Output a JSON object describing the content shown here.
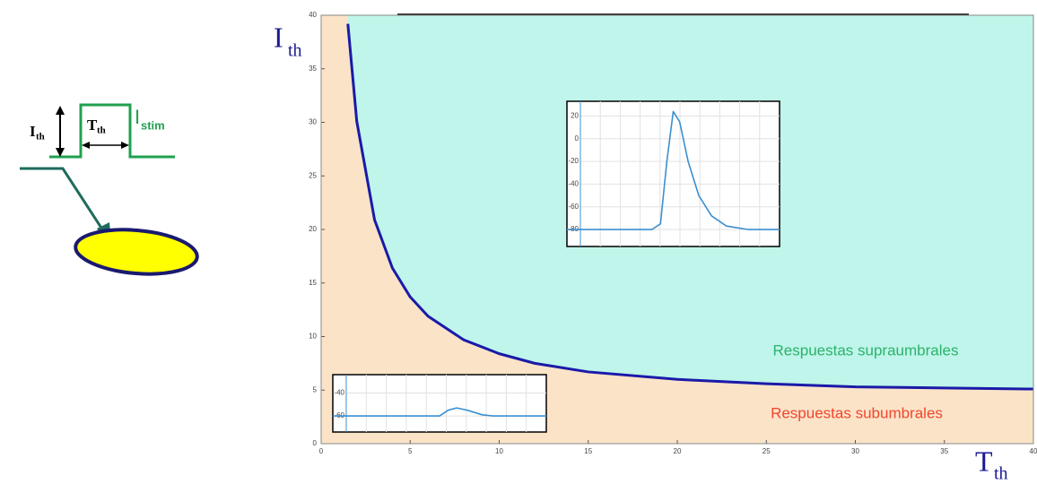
{
  "chart_data": [
    {
      "type": "line",
      "x_label": {
        "main": "T",
        "sub": "th"
      },
      "y_label": {
        "main": "I",
        "sub": "th"
      },
      "x": [
        1.5,
        2,
        3,
        4,
        5,
        6,
        8,
        10,
        12,
        15,
        20,
        25,
        30,
        35,
        40
      ],
      "series": [
        {
          "color": "#1a1aa8",
          "values": [
            39.2,
            30.1,
            20.9,
            16.4,
            13.7,
            11.9,
            9.7,
            8.4,
            7.5,
            6.7,
            6.0,
            5.6,
            5.3,
            5.2,
            5.1
          ]
        }
      ],
      "fill_above": "#bff5ea",
      "fill_below": "#fbe3c8",
      "region_labels": [
        {
          "text": "Respuestas supraumbrales",
          "color": "#2bb36b"
        },
        {
          "text": "Respuestas subumbrales",
          "color": "#f0462d"
        }
      ],
      "xlim": [
        0,
        40
      ],
      "ylim": [
        0,
        40
      ],
      "xticks": [
        0,
        5,
        10,
        15,
        20,
        25,
        30,
        35,
        40
      ],
      "yticks": [
        0,
        5,
        10,
        15,
        20,
        25,
        30,
        35,
        40
      ]
    },
    {
      "type": "line",
      "x": [
        0,
        40,
        44,
        47,
        50,
        53,
        57,
        62,
        68,
        75,
        85,
        100
      ],
      "series": [
        {
          "color": "#3b8fd0",
          "values": [
            -80,
            -80,
            -75,
            -20,
            24,
            15,
            -20,
            -50,
            -68,
            -77,
            -80,
            -80
          ]
        }
      ],
      "xlim": [
        0,
        100
      ],
      "ylim": [
        -95,
        33
      ],
      "yticks": [
        20,
        0,
        -20,
        -40,
        -60,
        -80
      ],
      "grid": true
    },
    {
      "type": "line",
      "x": [
        0,
        50,
        54,
        58,
        63,
        70,
        75,
        100
      ],
      "series": [
        {
          "color": "#3b8fd0",
          "values": [
            -60,
            -60,
            -55,
            -53,
            -55,
            -59,
            -60,
            -60
          ]
        }
      ],
      "xlim": [
        0,
        100
      ],
      "ylim": [
        -74,
        -24
      ],
      "yticks": [
        -40,
        -60
      ],
      "grid": true
    }
  ],
  "diagram": {
    "amplitude_label": {
      "main": "I",
      "sub": "th"
    },
    "duration_label": {
      "main": "T",
      "sub": "th"
    },
    "stimulus_label": {
      "main": "I",
      "sub": "stim"
    }
  }
}
